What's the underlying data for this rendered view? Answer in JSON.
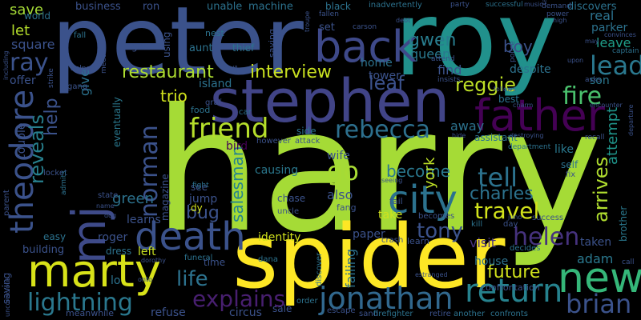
{
  "background": "#000000",
  "words": [
    {
      "text": "harry",
      "color": "#a5db36"
    },
    {
      "text": "peter",
      "color": "#3b528b"
    },
    {
      "text": "roy",
      "color": "#21918c"
    },
    {
      "text": "spider",
      "color": "#fde725"
    },
    {
      "text": "stephen",
      "color": "#414487"
    },
    {
      "text": "mj",
      "color": "#3e4a89"
    },
    {
      "text": "marty",
      "color": "#d8e219"
    },
    {
      "text": "theodore",
      "color": "#3b528b"
    },
    {
      "text": "back",
      "color": "#3e4989"
    },
    {
      "text": "father",
      "color": "#440154"
    },
    {
      "text": "death",
      "color": "#3b528b"
    },
    {
      "text": "new",
      "color": "#35b779"
    },
    {
      "text": "return",
      "color": "#26828e"
    },
    {
      "text": "jonathan",
      "color": "#31688e"
    },
    {
      "text": "city",
      "color": "#2c728e"
    },
    {
      "text": "friend",
      "color": "#b5de2b"
    },
    {
      "text": "rebecca",
      "color": "#2d708e"
    },
    {
      "text": "norman",
      "color": "#3b528b"
    },
    {
      "text": "helen",
      "color": "#46327e"
    },
    {
      "text": "brian",
      "color": "#3b528b"
    },
    {
      "text": "lead",
      "color": "#2a788e"
    },
    {
      "text": "travel",
      "color": "#d2e21b"
    },
    {
      "text": "tell",
      "color": "#2c728e"
    },
    {
      "text": "go",
      "color": "#a8db34"
    },
    {
      "text": "fire",
      "color": "#4ac16d"
    },
    {
      "text": "lightning",
      "color": "#2a788e"
    },
    {
      "text": "explains",
      "color": "#481f70"
    },
    {
      "text": "life",
      "color": "#2c728e"
    },
    {
      "text": "restaurant",
      "color": "#addc30"
    },
    {
      "text": "interview",
      "color": "#c8e020"
    },
    {
      "text": "ray",
      "color": "#3b528b"
    },
    {
      "text": "tony",
      "color": "#3b528b"
    },
    {
      "text": "reggie",
      "color": "#bddf26"
    },
    {
      "text": "gwen",
      "color": "#287d8e"
    },
    {
      "text": "charles",
      "color": "#2c728e"
    },
    {
      "text": "salesman",
      "color": "#25848e"
    },
    {
      "text": "reveals",
      "color": "#27808e"
    },
    {
      "text": "help",
      "color": "#3b528b"
    },
    {
      "text": "arrives",
      "color": "#b0dd2f"
    },
    {
      "text": "attempt",
      "color": "#1f958b"
    },
    {
      "text": "future",
      "color": "#d0e11c"
    },
    {
      "text": "adam",
      "color": "#2a788e"
    },
    {
      "text": "bug",
      "color": "#3b528b"
    },
    {
      "text": "leaf",
      "color": "#3b528b"
    },
    {
      "text": "trio",
      "color": "#d0e11c"
    },
    {
      "text": "become",
      "color": "#2a788e"
    },
    {
      "text": "york",
      "color": "#bddf26"
    },
    {
      "text": "green",
      "color": "#2c728e"
    },
    {
      "text": "queen",
      "color": "#2a788e"
    },
    {
      "text": "boy",
      "color": "#3b528b"
    },
    {
      "text": "leave",
      "color": "#1f9e89"
    },
    {
      "text": "parker",
      "color": "#2c728e"
    },
    {
      "text": "son",
      "color": "#2a788e"
    },
    {
      "text": "real",
      "color": "#2c728e"
    },
    {
      "text": "visit",
      "color": "#46327e"
    },
    {
      "text": "taken",
      "color": "#3b528b"
    },
    {
      "text": "brother",
      "color": "#2a788e"
    },
    {
      "text": "like",
      "color": "#2a788e"
    },
    {
      "text": "away",
      "color": "#2c728e"
    },
    {
      "text": "house",
      "color": "#2c728e"
    },
    {
      "text": "identity",
      "color": "#d0e11c"
    },
    {
      "text": "causing",
      "color": "#2a788e"
    },
    {
      "text": "also",
      "color": "#3b528b"
    },
    {
      "text": "take",
      "color": "#d0e11c"
    },
    {
      "text": "paper",
      "color": "#3b528b"
    },
    {
      "text": "learns",
      "color": "#3b528b"
    },
    {
      "text": "roger",
      "color": "#3b528b"
    },
    {
      "text": "left",
      "color": "#c8e020"
    },
    {
      "text": "give",
      "color": "#2c728e"
    },
    {
      "text": "save",
      "color": "#a5db36"
    },
    {
      "text": "let",
      "color": "#b5de2b"
    },
    {
      "text": "square",
      "color": "#3b528b"
    },
    {
      "text": "offer",
      "color": "#3b528b"
    },
    {
      "text": "couple",
      "color": "#3b528b"
    },
    {
      "text": "world",
      "color": "#2c728e"
    },
    {
      "text": "business",
      "color": "#3b528b"
    },
    {
      "text": "ron",
      "color": "#3b528b"
    },
    {
      "text": "unable",
      "color": "#2c728e"
    },
    {
      "text": "machine",
      "color": "#2c728e"
    },
    {
      "text": "discovers",
      "color": "#2c728e"
    },
    {
      "text": "island",
      "color": "#2c728e"
    },
    {
      "text": "magazine",
      "color": "#3b528b"
    },
    {
      "text": "eventually",
      "color": "#2a788e"
    },
    {
      "text": "jump",
      "color": "#3b528b"
    },
    {
      "text": "see",
      "color": "#3b528b"
    },
    {
      "text": "dy",
      "color": "#d0e11c"
    },
    {
      "text": "wife",
      "color": "#3b528b"
    },
    {
      "text": "side",
      "color": "#2c728e"
    },
    {
      "text": "home",
      "color": "#2c728e"
    },
    {
      "text": "tower",
      "color": "#3b528b"
    },
    {
      "text": "find",
      "color": "#3b528b"
    },
    {
      "text": "best",
      "color": "#2c728e"
    },
    {
      "text": "assistant",
      "color": "#2c728e"
    },
    {
      "text": "despite",
      "color": "#2c728e"
    },
    {
      "text": "building",
      "color": "#3b528b"
    },
    {
      "text": "easy",
      "color": "#2c728e"
    },
    {
      "text": "dress",
      "color": "#2c728e"
    },
    {
      "text": "time",
      "color": "#3b528b"
    },
    {
      "text": "sale",
      "color": "#3b528b"
    },
    {
      "text": "circus",
      "color": "#3b528b"
    },
    {
      "text": "refuse",
      "color": "#3b528b"
    },
    {
      "text": "lo",
      "color": "#2c728e"
    },
    {
      "text": "saving",
      "color": "#3b528b"
    },
    {
      "text": "nest",
      "color": "#2c728e"
    },
    {
      "text": "aunt",
      "color": "#2c728e"
    },
    {
      "text": "thief",
      "color": "#2c728e"
    },
    {
      "text": "gas",
      "color": "#3b528b"
    },
    {
      "text": "using",
      "color": "#3b528b"
    },
    {
      "text": "saying",
      "color": "#3b528b"
    },
    {
      "text": "set",
      "color": "#3b528b"
    },
    {
      "text": "food",
      "color": "#2c728e"
    },
    {
      "text": "graf",
      "color": "#3b528b"
    },
    {
      "text": "bird",
      "color": "#440154"
    },
    {
      "text": "self",
      "color": "#2c728e"
    },
    {
      "text": "fix",
      "color": "#3b528b"
    },
    {
      "text": "chase",
      "color": "#3b528b"
    },
    {
      "text": "uncle",
      "color": "#3b528b"
    },
    {
      "text": "fang",
      "color": "#3b528b"
    },
    {
      "text": "fail",
      "color": "#3b528b"
    },
    {
      "text": "learn",
      "color": "#3b528b"
    },
    {
      "text": "crash",
      "color": "#3b528b"
    },
    {
      "text": "kill",
      "color": "#2c728e"
    },
    {
      "text": "day",
      "color": "#3b528b"
    },
    {
      "text": "order",
      "color": "#2c728e"
    },
    {
      "text": "escape",
      "color": "#3b528b"
    },
    {
      "text": "sand",
      "color": "#3b528b"
    },
    {
      "text": "firefighter",
      "color": "#2c728e"
    },
    {
      "text": "retire",
      "color": "#3b528b"
    },
    {
      "text": "another",
      "color": "#2c728e"
    },
    {
      "text": "confronts",
      "color": "#2c728e"
    },
    {
      "text": "meanwhile",
      "color": "#3b528b"
    },
    {
      "text": "funeral",
      "color": "#2c728e"
    },
    {
      "text": "dana",
      "color": "#2c728e"
    },
    {
      "text": "discover",
      "color": "#2c728e"
    },
    {
      "text": "failing",
      "color": "#2c728e"
    },
    {
      "text": "confrontation",
      "color": "#3b528b"
    },
    {
      "text": "decides",
      "color": "#2c728e"
    },
    {
      "text": "becomes",
      "color": "#3b528b"
    },
    {
      "text": "success",
      "color": "#3b528b"
    },
    {
      "text": "attack",
      "color": "#3b528b"
    },
    {
      "text": "however",
      "color": "#3b528b"
    },
    {
      "text": "car",
      "color": "#2c728e"
    },
    {
      "text": "fight",
      "color": "#2c728e"
    },
    {
      "text": "state",
      "color": "#3b528b"
    },
    {
      "text": "parent",
      "color": "#3b528b"
    },
    {
      "text": "locket",
      "color": "#3b528b"
    },
    {
      "text": "admits",
      "color": "#2c728e"
    },
    {
      "text": "strike",
      "color": "#3b528b"
    },
    {
      "text": "gang",
      "color": "#3b528b"
    },
    {
      "text": "helped",
      "color": "#3b528b"
    },
    {
      "text": "meet",
      "color": "#3b528b"
    },
    {
      "text": "fall",
      "color": "#2c728e"
    },
    {
      "text": "black",
      "color": "#2c728e"
    },
    {
      "text": "fallen",
      "color": "#3b528b"
    },
    {
      "text": "inadvertently",
      "color": "#2c728e"
    },
    {
      "text": "party",
      "color": "#3b528b"
    },
    {
      "text": "successful",
      "color": "#2c728e"
    },
    {
      "text": "demand",
      "color": "#3b528b"
    },
    {
      "text": "power",
      "color": "#3b528b"
    },
    {
      "text": "captain",
      "color": "#2c728e"
    },
    {
      "text": "convinces",
      "color": "#3b528b"
    },
    {
      "text": "department",
      "color": "#2c728e"
    },
    {
      "text": "police",
      "color": "#3b528b"
    },
    {
      "text": "asks",
      "color": "#3b528b"
    },
    {
      "text": "recall",
      "color": "#3b528b"
    },
    {
      "text": "departure",
      "color": "#3b528b"
    },
    {
      "text": "encounter",
      "color": "#3b528b"
    },
    {
      "text": "destroying",
      "color": "#3b528b"
    },
    {
      "text": "including",
      "color": "#3b528b"
    },
    {
      "text": "unconscious",
      "color": "#3b528b"
    },
    {
      "text": "estranged",
      "color": "#3b528b"
    },
    {
      "text": "debt",
      "color": "#3b528b"
    },
    {
      "text": "carson",
      "color": "#3b528b"
    },
    {
      "text": "attend",
      "color": "#3b528b"
    },
    {
      "text": "insists",
      "color": "#3b528b"
    },
    {
      "text": "follows",
      "color": "#3b528b"
    },
    {
      "text": "charm",
      "color": "#3b528b"
    },
    {
      "text": "hide",
      "color": "#3b528b"
    },
    {
      "text": "troupe",
      "color": "#3b528b"
    },
    {
      "text": "juno",
      "color": "#3b528b"
    },
    {
      "text": "call",
      "color": "#3b528b"
    },
    {
      "text": "high",
      "color": "#3b528b"
    },
    {
      "text": "may",
      "color": "#3b528b"
    },
    {
      "text": "us",
      "color": "#3b528b"
    },
    {
      "text": "seeing",
      "color": "#3b528b"
    },
    {
      "text": "onto",
      "color": "#3b528b"
    },
    {
      "text": "dorothy",
      "color": "#3b528b"
    },
    {
      "text": "name",
      "color": "#3b528b"
    },
    {
      "text": "dog",
      "color": "#3b528b"
    },
    {
      "text": "upon",
      "color": "#3b528b"
    },
    {
      "text": "tale",
      "color": "#3b528b"
    },
    {
      "text": "music",
      "color": "#3b528b"
    }
  ]
}
